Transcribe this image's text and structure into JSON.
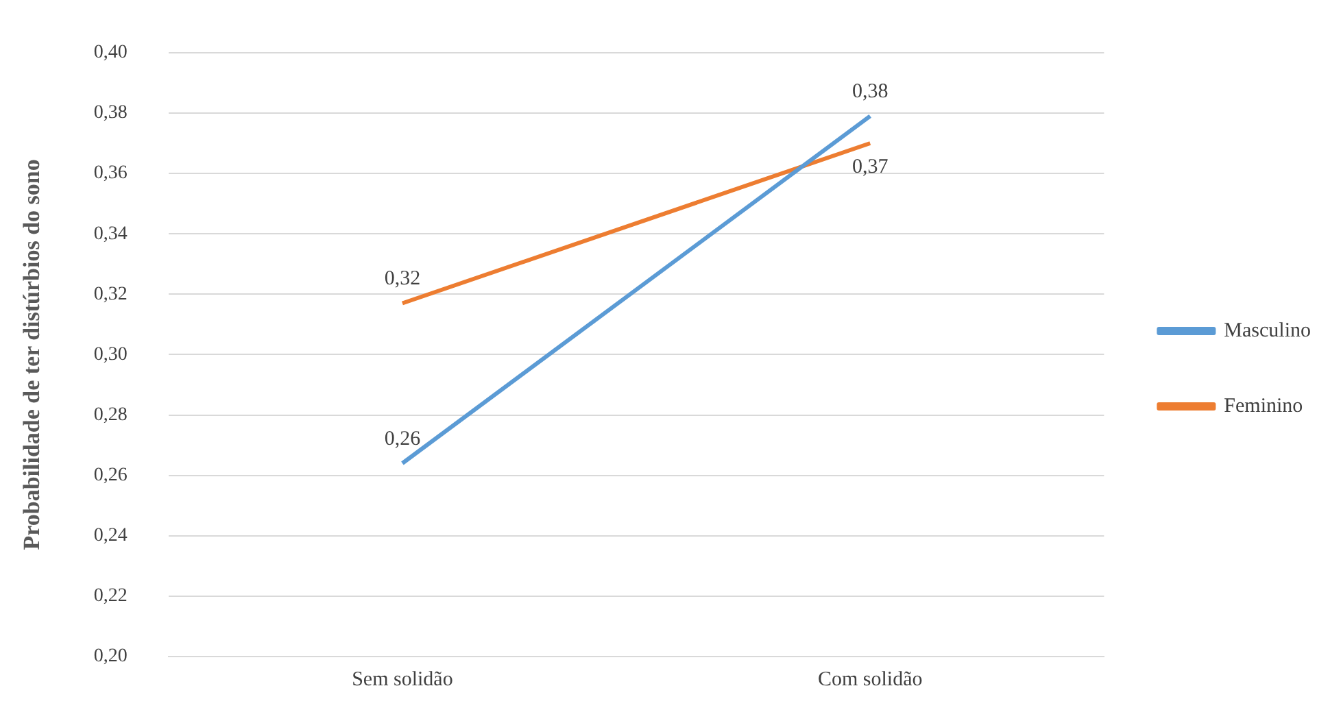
{
  "chart_data": {
    "type": "line",
    "ylabel": "Probabilidade de ter distúrbios do sono",
    "categories": [
      "Sem solidão",
      "Com solidão"
    ],
    "series": [
      {
        "name": "Masculino",
        "color": "#5b9bd5",
        "values": [
          0.264,
          0.379
        ],
        "value_labels": [
          "0,26",
          "0,38"
        ]
      },
      {
        "name": "Feminino",
        "color": "#ed7d31",
        "values": [
          0.317,
          0.37
        ],
        "value_labels": [
          "0,32",
          "0,37"
        ]
      }
    ],
    "ylim": [
      0.2,
      0.4
    ],
    "yticks": [
      {
        "value": 0.2,
        "label": "0,20"
      },
      {
        "value": 0.22,
        "label": "0,22"
      },
      {
        "value": 0.24,
        "label": "0,24"
      },
      {
        "value": 0.26,
        "label": "0,26"
      },
      {
        "value": 0.28,
        "label": "0,28"
      },
      {
        "value": 0.3,
        "label": "0,30"
      },
      {
        "value": 0.32,
        "label": "0,32"
      },
      {
        "value": 0.34,
        "label": "0,34"
      },
      {
        "value": 0.36,
        "label": "0,36"
      },
      {
        "value": 0.38,
        "label": "0,38"
      },
      {
        "value": 0.4,
        "label": "0,40"
      }
    ],
    "grid": "y",
    "legend": "right",
    "marker": "none",
    "line_style": "solid"
  }
}
